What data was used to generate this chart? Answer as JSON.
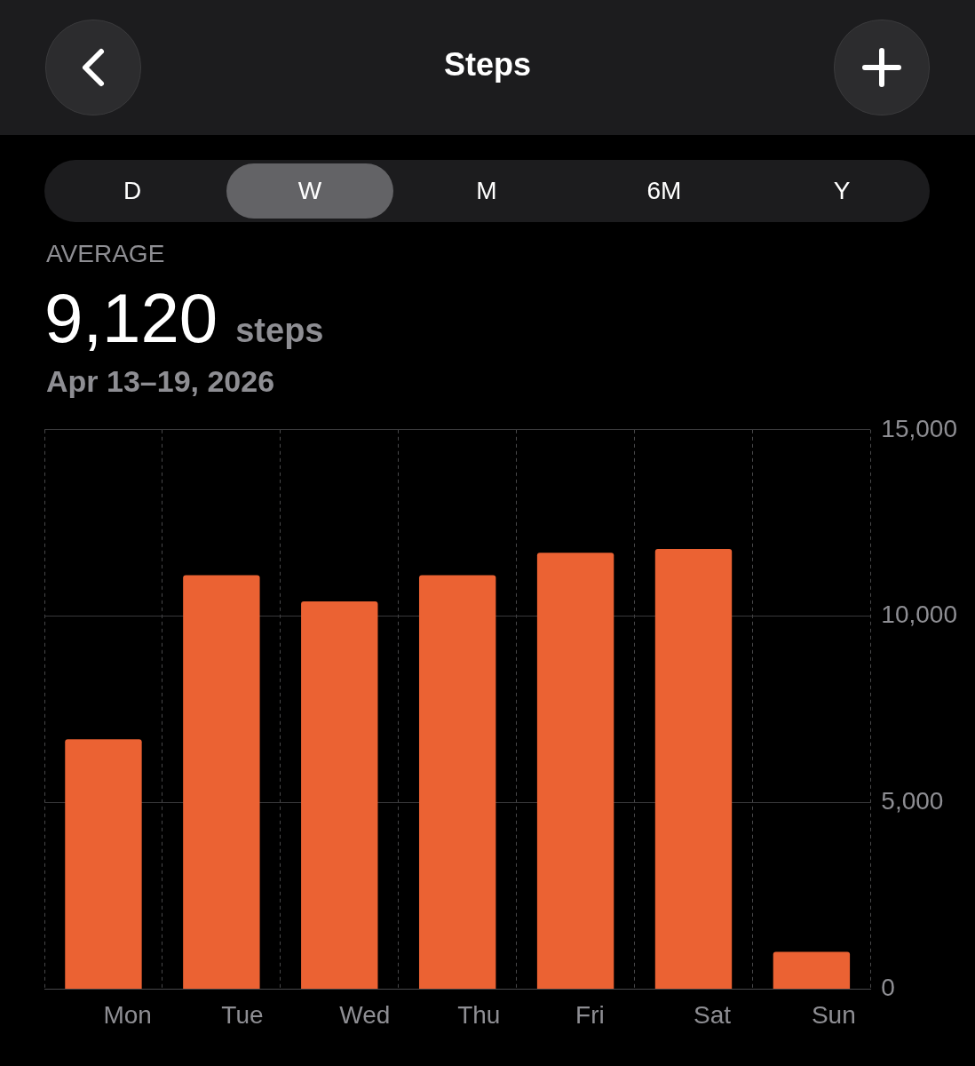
{
  "chart_data": {
    "type": "bar",
    "title": "Steps",
    "subtitle": "Apr 13–19, 2026",
    "annotations": [
      "D",
      "W",
      "M",
      "6M",
      "Y",
      "AVERAGE",
      "9,120",
      "steps"
    ],
    "categories": [
      "Mon",
      "Tue",
      "Wed",
      "Thu",
      "Fri",
      "Sat",
      "Sun"
    ],
    "values": [
      6700,
      11100,
      10400,
      11100,
      11700,
      11800,
      1000
    ],
    "color": "#eb6233",
    "ylim": [
      0,
      15000
    ],
    "yticks": [
      {
        "value": 0,
        "label": "0"
      },
      {
        "value": 5000,
        "label": "5,000"
      },
      {
        "value": 10000,
        "label": "10,000"
      },
      {
        "value": 15000,
        "label": "15,000"
      }
    ],
    "grid": true
  }
}
